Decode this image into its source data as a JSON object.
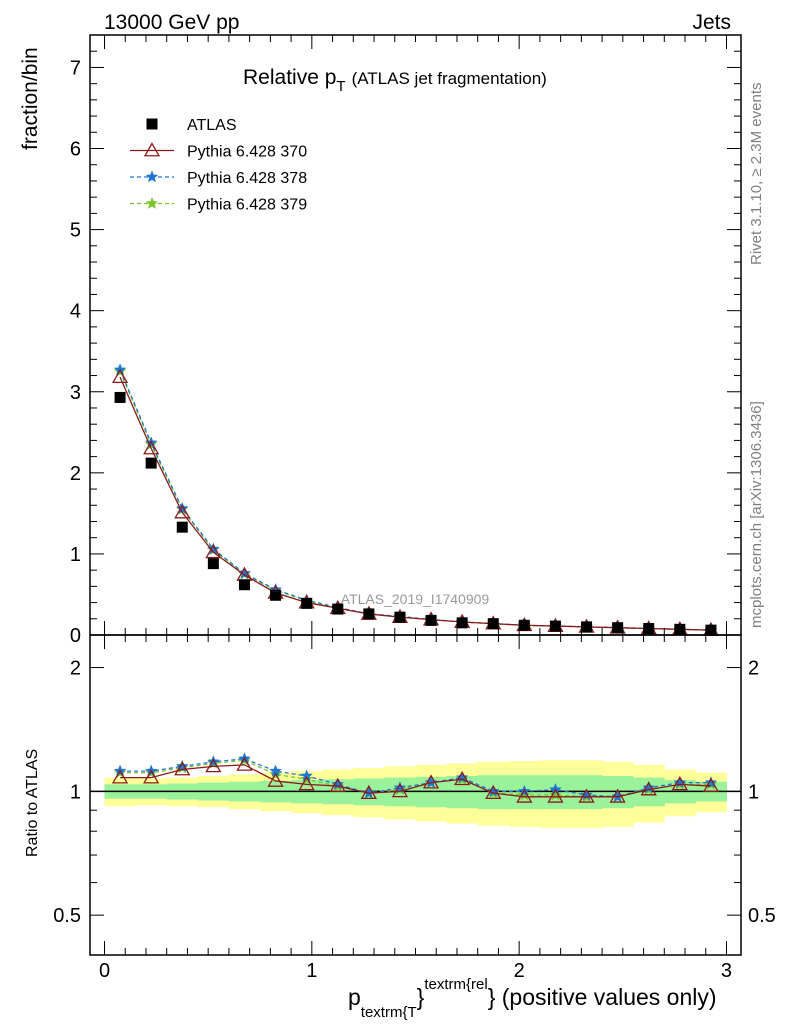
{
  "header": {
    "left": "13000 GeV pp",
    "right": "Jets"
  },
  "side": {
    "rivet": "Rivet 3.1.10, ≥ 2.3M events",
    "mcplots": "mcplots.cern.ch [arXiv:1306.3436]"
  },
  "chart_data": {
    "type": "line",
    "title": {
      "main": "Relative p",
      "sub": "T",
      "rest": "(ATLAS jet fragmentation)"
    },
    "analysis_label": "ATLAS_2019_I1740909",
    "xlabel": {
      "p": "p",
      "sub": "textrm{T",
      "sup": "textrm{rel",
      "rest": "} (positive values only)"
    },
    "ylabel_main": "fraction/bin",
    "ylabel_ratio": "Ratio to ATLAS",
    "xlim": [
      -0.07,
      3.07
    ],
    "ylim_main": [
      0,
      7.4
    ],
    "ylim_ratio": [
      0.4,
      2.4
    ],
    "ratio_log_scale": true,
    "x_ticks": [
      0,
      1,
      2,
      3
    ],
    "y_ticks_main": [
      0,
      1,
      2,
      3,
      4,
      5,
      6,
      7
    ],
    "y_ticks_ratio": [
      0.5,
      1,
      2
    ],
    "x": [
      0.075,
      0.225,
      0.375,
      0.525,
      0.675,
      0.825,
      0.975,
      1.125,
      1.275,
      1.425,
      1.575,
      1.725,
      1.875,
      2.025,
      2.175,
      2.325,
      2.475,
      2.625,
      2.775,
      2.925
    ],
    "legend": [
      {
        "name": "ATLAS",
        "color": "#000000",
        "marker": "square",
        "style": "none"
      },
      {
        "name": "Pythia 6.428 370",
        "color": "#8b1a1a",
        "marker": "triangle",
        "style": "solid"
      },
      {
        "name": "Pythia 6.428 378",
        "color": "#1f77d4",
        "marker": "star",
        "style": "dashed"
      },
      {
        "name": "Pythia 6.428 379",
        "color": "#7cc42c",
        "marker": "star",
        "style": "dashed"
      }
    ],
    "data": [
      2.93,
      2.12,
      1.33,
      0.88,
      0.62,
      0.49,
      0.39,
      0.32,
      0.26,
      0.22,
      0.18,
      0.15,
      0.14,
      0.12,
      0.11,
      0.1,
      0.09,
      0.08,
      0.07,
      0.06
    ],
    "series": [
      {
        "name": "Pythia 6.428 370",
        "values": [
          3.18,
          2.3,
          1.51,
          1.02,
          0.74,
          0.52,
          0.4,
          0.33,
          0.26,
          0.22,
          0.19,
          0.16,
          0.14,
          0.12,
          0.11,
          0.1,
          0.09,
          0.08,
          0.07,
          0.06
        ]
      },
      {
        "name": "Pythia 6.428 378",
        "values": [
          3.27,
          2.37,
          1.56,
          1.06,
          0.76,
          0.56,
          0.43,
          0.34,
          0.26,
          0.23,
          0.19,
          0.16,
          0.14,
          0.12,
          0.11,
          0.1,
          0.09,
          0.08,
          0.07,
          0.06
        ]
      },
      {
        "name": "Pythia 6.428 379",
        "values": [
          3.25,
          2.35,
          1.55,
          1.05,
          0.75,
          0.55,
          0.42,
          0.33,
          0.26,
          0.22,
          0.19,
          0.16,
          0.14,
          0.12,
          0.11,
          0.1,
          0.09,
          0.08,
          0.07,
          0.06
        ]
      }
    ],
    "ratio_series": [
      {
        "name": "Pythia 6.428 370",
        "values": [
          1.08,
          1.08,
          1.13,
          1.15,
          1.16,
          1.06,
          1.04,
          1.03,
          0.99,
          1.0,
          1.05,
          1.07,
          0.99,
          0.97,
          0.97,
          0.97,
          0.97,
          1.01,
          1.04,
          1.03
        ]
      },
      {
        "name": "Pythia 6.428 378",
        "values": [
          1.12,
          1.12,
          1.15,
          1.18,
          1.2,
          1.12,
          1.09,
          1.04,
          0.99,
          1.02,
          1.05,
          1.08,
          1.0,
          1.0,
          1.01,
          0.98,
          0.97,
          1.02,
          1.05,
          1.05
        ]
      },
      {
        "name": "Pythia 6.428 379",
        "values": [
          1.11,
          1.11,
          1.14,
          1.17,
          1.19,
          1.1,
          1.07,
          1.03,
          0.99,
          1.01,
          1.05,
          1.07,
          0.99,
          0.98,
          0.98,
          0.97,
          0.97,
          1.01,
          1.04,
          1.04
        ]
      }
    ],
    "band_inner": {
      "color": "#9af39a",
      "lo": [
        0.96,
        0.96,
        0.955,
        0.95,
        0.945,
        0.94,
        0.935,
        0.93,
        0.925,
        0.92,
        0.915,
        0.91,
        0.905,
        0.905,
        0.905,
        0.905,
        0.91,
        0.92,
        0.935,
        0.945
      ],
      "hi": [
        1.04,
        1.04,
        1.045,
        1.05,
        1.055,
        1.06,
        1.065,
        1.07,
        1.075,
        1.08,
        1.085,
        1.09,
        1.095,
        1.095,
        1.095,
        1.095,
        1.09,
        1.08,
        1.065,
        1.055
      ]
    },
    "band_outer": {
      "color": "#ffff99",
      "lo": [
        0.92,
        0.925,
        0.92,
        0.915,
        0.905,
        0.895,
        0.885,
        0.875,
        0.865,
        0.855,
        0.845,
        0.835,
        0.825,
        0.82,
        0.815,
        0.815,
        0.82,
        0.84,
        0.87,
        0.89
      ],
      "hi": [
        1.08,
        1.075,
        1.08,
        1.09,
        1.1,
        1.11,
        1.12,
        1.13,
        1.14,
        1.15,
        1.16,
        1.17,
        1.18,
        1.185,
        1.19,
        1.19,
        1.18,
        1.16,
        1.13,
        1.11
      ]
    }
  }
}
